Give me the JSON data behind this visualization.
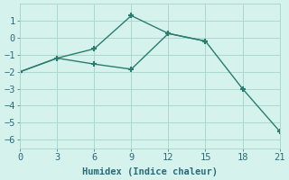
{
  "line1_x": [
    0,
    3,
    6,
    9,
    12,
    15
  ],
  "line1_y": [
    -2.0,
    -1.2,
    -0.65,
    1.3,
    0.25,
    -0.2
  ],
  "line2_x": [
    0,
    3,
    6,
    9,
    12,
    15,
    18,
    21
  ],
  "line2_y": [
    -2.0,
    -1.2,
    -1.55,
    -1.85,
    0.25,
    -0.2,
    -3.0,
    -5.5
  ],
  "line_color": "#2a7d6e",
  "bg_color": "#d5f2ed",
  "grid_color": "#aad8d0",
  "xlabel": "Humidex (Indice chaleur)",
  "xlim": [
    0,
    21
  ],
  "ylim": [
    -6.5,
    2.0
  ],
  "xticks": [
    0,
    3,
    6,
    9,
    12,
    15,
    18,
    21
  ],
  "yticks": [
    -6,
    -5,
    -4,
    -3,
    -2,
    -1,
    0,
    1
  ],
  "marker": "+",
  "markersize": 5,
  "markeredgewidth": 1.5,
  "linewidth": 1.0,
  "font_color": "#2a6b7a",
  "font_size": 7.5
}
